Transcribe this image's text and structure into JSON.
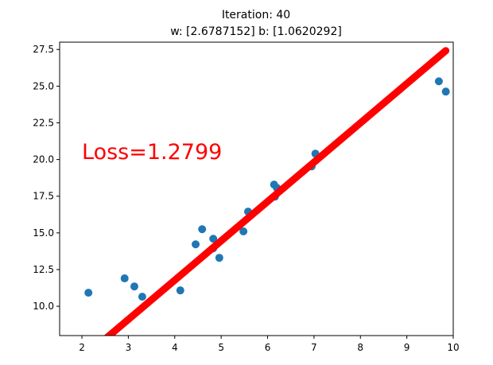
{
  "chart_data": {
    "type": "scatter",
    "title_line1": "Iteration: 40",
    "title_line2": "w: [2.6787152] b: [1.0620292]",
    "annotation": "Loss=1.2799",
    "xlim": [
      1.52,
      10.0
    ],
    "ylim": [
      8.0,
      28.0
    ],
    "xticks": [
      "2",
      "3",
      "4",
      "5",
      "6",
      "7",
      "8",
      "9",
      "10"
    ],
    "xtick_values": [
      2,
      3,
      4,
      5,
      6,
      7,
      8,
      9,
      10
    ],
    "yticks": [
      "10.0",
      "12.5",
      "15.0",
      "17.5",
      "20.0",
      "22.5",
      "25.0",
      "27.5"
    ],
    "ytick_values": [
      10,
      12.5,
      15,
      17.5,
      20,
      22.5,
      25,
      27.5
    ],
    "points": {
      "x": [
        2.14,
        2.92,
        3.13,
        3.3,
        4.12,
        4.45,
        4.59,
        4.83,
        4.83,
        4.96,
        5.48,
        5.58,
        6.14,
        6.2,
        6.16,
        6.95,
        7.03,
        9.69,
        9.84
      ],
      "y": [
        10.92,
        11.9,
        11.35,
        10.65,
        11.08,
        14.22,
        15.25,
        14.6,
        13.95,
        13.3,
        15.1,
        16.45,
        18.29,
        18.07,
        17.47,
        19.53,
        20.4,
        25.33,
        24.63
      ]
    },
    "fit_line": {
      "w": 2.6787152,
      "b": 1.0620292,
      "x_range": [
        2.14,
        9.84
      ]
    },
    "colors": {
      "points": "#1f77b4",
      "line": "#ff0000",
      "annotation": "#ff0000"
    }
  }
}
